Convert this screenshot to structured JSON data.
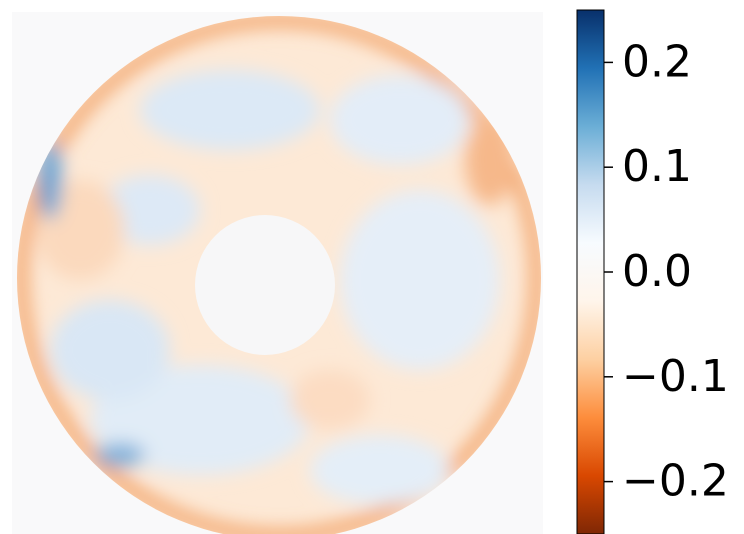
{
  "chart_data": {
    "type": "heatmap",
    "colorbar": {
      "clim": [
        -0.25,
        0.25
      ],
      "ticks": [
        0.2,
        0.1,
        {
          "value": 0,
          "label": "0.0"
        },
        {
          "value": -0.1,
          "label": "−0.1"
        },
        {
          "value": -0.2,
          "label": "−0.2"
        }
      ],
      "colors": [
        "#7f2704",
        "#d94801",
        "#fd8d3c",
        "#fdd0a2",
        "#fff5eb",
        "#f7fbff",
        "#c6dbef",
        "#6baed6",
        "#2171b5",
        "#08306b"
      ]
    }
  }
}
